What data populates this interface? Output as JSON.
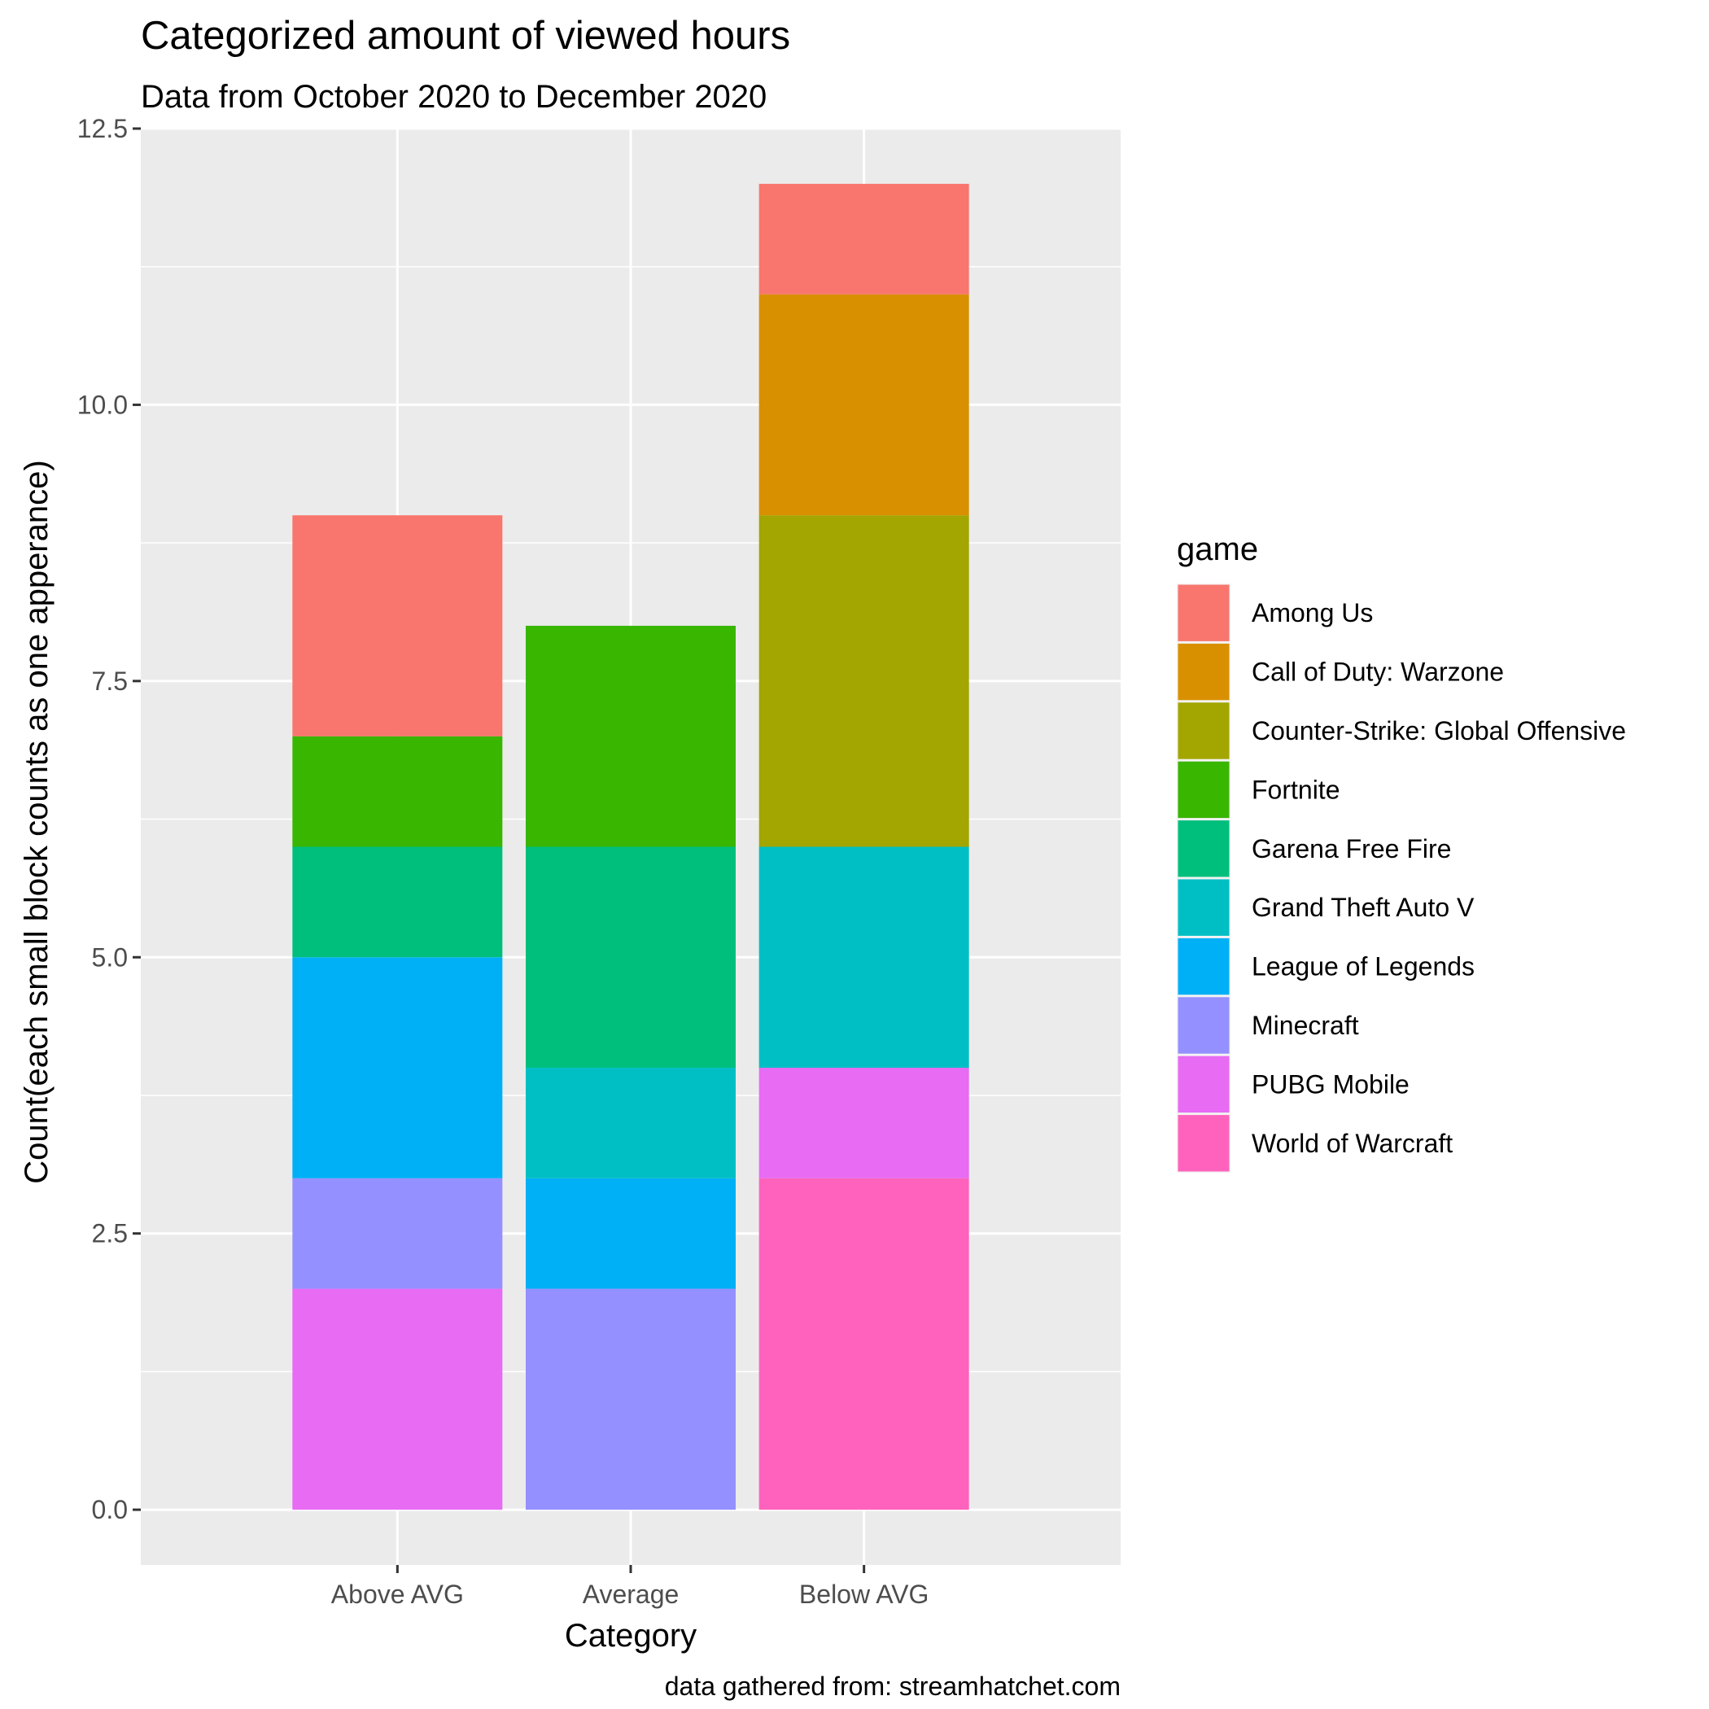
{
  "chart_data": {
    "type": "bar",
    "stacked": true,
    "title": "Categorized amount of viewed hours",
    "subtitle": "Data from October 2020 to December 2020",
    "xlabel": "Category",
    "ylabel": "Count(each small block counts as one apperance)",
    "caption": "data gathered from: streamhatchet.com",
    "categories": [
      "Above AVG",
      "Average",
      "Below AVG"
    ],
    "ylim": [
      -0.5,
      12.5
    ],
    "yticks": [
      "0.0",
      "2.5",
      "5.0",
      "7.5",
      "10.0",
      "12.5"
    ],
    "ytick_values": [
      0,
      2.5,
      5,
      7.5,
      10,
      12.5
    ],
    "grid": true,
    "legend_title": "game",
    "legend_position": "right",
    "series": [
      {
        "name": "Among Us",
        "color": "#F8766D",
        "values": [
          2,
          0,
          1
        ]
      },
      {
        "name": "Call of Duty: Warzone",
        "color": "#D89000",
        "values": [
          0,
          0,
          2
        ]
      },
      {
        "name": "Counter-Strike: Global Offensive",
        "color": "#A3A500",
        "values": [
          0,
          0,
          3
        ]
      },
      {
        "name": "Fortnite",
        "color": "#39B600",
        "values": [
          1,
          2,
          0
        ]
      },
      {
        "name": "Garena Free Fire",
        "color": "#00BF7D",
        "values": [
          1,
          2,
          0
        ]
      },
      {
        "name": "Grand Theft Auto V",
        "color": "#00BFC4",
        "values": [
          0,
          1,
          2
        ]
      },
      {
        "name": "League of Legends",
        "color": "#00B0F6",
        "values": [
          2,
          1,
          0
        ]
      },
      {
        "name": "Minecraft",
        "color": "#9590FF",
        "values": [
          1,
          2,
          0
        ]
      },
      {
        "name": "PUBG Mobile",
        "color": "#E76BF3",
        "values": [
          2,
          0,
          1
        ]
      },
      {
        "name": "World of Warcraft",
        "color": "#FF62BC",
        "values": [
          0,
          0,
          3
        ]
      }
    ]
  }
}
